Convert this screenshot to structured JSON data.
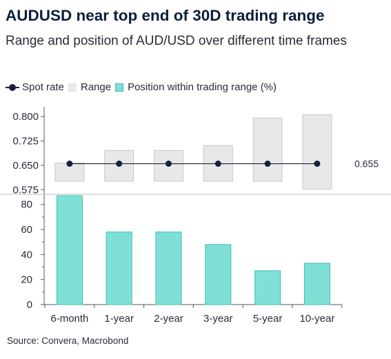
{
  "title": "AUDUSD near top end of 30D trading range",
  "subtitle": "Range and position of AUD/USD over different time frames",
  "legend": [
    {
      "key": "spot",
      "label": "Spot rate",
      "color": "#16213e"
    },
    {
      "key": "range",
      "label": "Range",
      "color": "#e8e8e8"
    },
    {
      "key": "position",
      "label": "Position within trading range (%)",
      "color": "#7fe0d6"
    }
  ],
  "source": "Source: Convera, Macrobond",
  "colors": {
    "range_fill": "#e8e8e8",
    "range_stroke": "#bdbdbd",
    "bar_fill": "#7fe0d6",
    "bar_stroke": "#3cbfb2",
    "spot": "#16213e",
    "axis": "#555555"
  },
  "chart_data": [
    {
      "type": "range",
      "categories": [
        "6-month",
        "1-year",
        "2-year",
        "3-year",
        "5-year",
        "10-year"
      ],
      "ranges": [
        [
          0.601,
          0.657
        ],
        [
          0.601,
          0.696
        ],
        [
          0.601,
          0.696
        ],
        [
          0.601,
          0.711
        ],
        [
          0.601,
          0.795
        ],
        [
          0.577,
          0.806
        ]
      ],
      "spot": 0.655,
      "spot_label": "0.655",
      "yticks": [
        0.575,
        0.65,
        0.725,
        0.8
      ],
      "ytick_labels": [
        "0.575",
        "0.650",
        "0.725",
        "0.800"
      ],
      "ylim": [
        0.565,
        0.83
      ]
    },
    {
      "type": "bar",
      "categories": [
        "6-month",
        "1-year",
        "2-year",
        "3-year",
        "5-year",
        "10-year"
      ],
      "values": [
        87,
        58,
        58,
        48,
        27,
        33
      ],
      "yticks": [
        0,
        20,
        40,
        60,
        80
      ],
      "ylim": [
        0,
        87
      ]
    }
  ]
}
